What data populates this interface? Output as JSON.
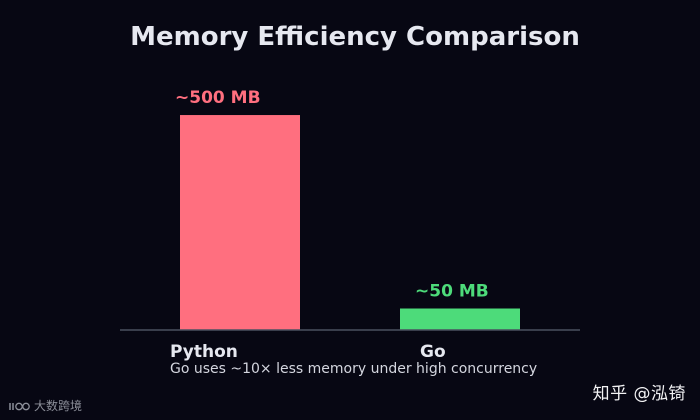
{
  "chart_data": {
    "type": "bar",
    "title": "Memory Efficiency Comparison",
    "categories": [
      "Python",
      "Go"
    ],
    "values": [
      500,
      50
    ],
    "data_labels": [
      "~500 MB",
      "~50 MB"
    ],
    "colors": [
      "#ff6f7f",
      "#4ddb7a"
    ],
    "ylim": [
      0,
      535
    ],
    "grid": false,
    "caption": "Go uses ~10× less memory under high concurrency"
  },
  "colors": {
    "background": "#070713",
    "axis": "#4a5060",
    "text": "#e6e8f0"
  },
  "watermarks": {
    "right": "知乎 @泓锜",
    "left": "大数跨境"
  }
}
